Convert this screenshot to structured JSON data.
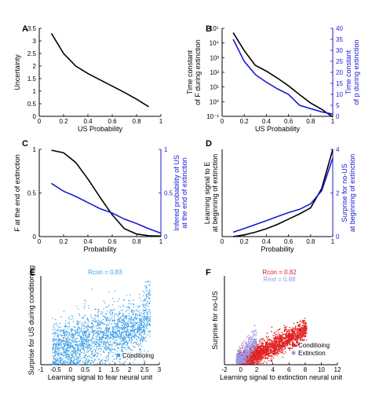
{
  "chart_data": [
    {
      "panel": "A",
      "type": "line",
      "xlabel": "US Probability",
      "ylabel": "Uncertainty",
      "xlim": [
        0,
        1
      ],
      "ylim": [
        0,
        3.5
      ],
      "xticks": [
        "0",
        "0.2",
        "0.4",
        "0.6",
        "0.8",
        "1"
      ],
      "yticks": [
        "0",
        "0.5",
        "1",
        "1.5",
        "2",
        "2.5",
        "3",
        "3.5"
      ],
      "series": [
        {
          "color": "#000000",
          "x": [
            0.1,
            0.2,
            0.3,
            0.4,
            0.5,
            0.6,
            0.7,
            0.8,
            0.9
          ],
          "y": [
            3.3,
            2.5,
            2.0,
            1.7,
            1.45,
            1.2,
            0.95,
            0.68,
            0.38
          ]
        }
      ]
    },
    {
      "panel": "B",
      "type": "line",
      "xlabel": "US Probability",
      "ylabel": "Time constant of F during extinction",
      "ylabel_lines": [
        "Time constant",
        "of F during extinction"
      ],
      "ylabel_right": "Time constant of p during extinction",
      "ylabel_right_lines": [
        "Time constant",
        "of p during extinction"
      ],
      "xlim": [
        0,
        1
      ],
      "ylim_log": [
        -1,
        5
      ],
      "ylim_right": [
        0,
        40
      ],
      "xticks": [
        "0",
        "0.2",
        "0.4",
        "0.6",
        "0.8",
        "1"
      ],
      "yticks": [
        "10⁻¹",
        "10⁰",
        "10¹",
        "10²",
        "10³",
        "10⁴",
        "10⁵"
      ],
      "yticks_right": [
        "0",
        "5",
        "10",
        "15",
        "20",
        "25",
        "30",
        "35",
        "40"
      ],
      "series": [
        {
          "axis": "left-log",
          "color": "#000000",
          "x": [
            0.1,
            0.2,
            0.3,
            0.4,
            0.5,
            0.6,
            0.7,
            0.8,
            0.9,
            1.0
          ],
          "y": [
            50000,
            3000,
            300,
            120,
            40,
            12,
            3,
            0.8,
            0.3,
            0.09
          ]
        },
        {
          "axis": "right",
          "color": "#1a1ad6",
          "x": [
            0.1,
            0.2,
            0.3,
            0.4,
            0.5,
            0.6,
            0.7,
            0.8,
            0.9,
            1.0
          ],
          "y": [
            35,
            25,
            19,
            15.5,
            12.5,
            10,
            5,
            3.5,
            2,
            1
          ]
        }
      ]
    },
    {
      "panel": "C",
      "type": "line",
      "xlabel": "Probability",
      "ylabel_lines": [
        "F at the end of extinction"
      ],
      "ylabel_right_lines": [
        "Infered probability of US",
        "at the end of extinction"
      ],
      "xlim": [
        0,
        1
      ],
      "ylim": [
        0,
        1
      ],
      "ylim_right": [
        0,
        1
      ],
      "xticks": [
        "0",
        "0.2",
        "0.4",
        "0.6",
        "0.8",
        "1"
      ],
      "yticks": [
        "0",
        "0.5",
        "1"
      ],
      "yticks_right": [
        "0",
        "0.5",
        "1"
      ],
      "series": [
        {
          "axis": "left",
          "color": "#000000",
          "x": [
            0.1,
            0.2,
            0.3,
            0.4,
            0.5,
            0.6,
            0.7,
            0.8,
            0.9,
            1.0
          ],
          "y": [
            0.99,
            0.96,
            0.85,
            0.66,
            0.45,
            0.25,
            0.09,
            0.03,
            0.01,
            0.005
          ]
        },
        {
          "axis": "right",
          "color": "#1a1ad6",
          "x": [
            0.1,
            0.2,
            0.3,
            0.4,
            0.5,
            0.6,
            0.7,
            0.8,
            0.9,
            1.0
          ],
          "y": [
            0.61,
            0.52,
            0.46,
            0.39,
            0.32,
            0.27,
            0.2,
            0.15,
            0.09,
            0.04
          ]
        }
      ]
    },
    {
      "panel": "D",
      "type": "line",
      "xlabel": "Probability",
      "ylabel_lines": [
        "Learning signal to E",
        "at beginning of extinction"
      ],
      "ylabel_right_lines": [
        "Surprise for no-US",
        "at beginning of extinction"
      ],
      "xlim": [
        0,
        1
      ],
      "ylim": [
        0,
        1
      ],
      "ylim_right": [
        0,
        4
      ],
      "xticks": [
        "0",
        "0.2",
        "0.4",
        "0.6",
        "0.8",
        "1"
      ],
      "yticks_right": [
        "0",
        "2",
        "4"
      ],
      "series": [
        {
          "axis": "left",
          "color": "#000000",
          "x": [
            0.1,
            0.2,
            0.3,
            0.4,
            0.5,
            0.6,
            0.7,
            0.8,
            0.9,
            1.0
          ],
          "y": [
            0.0,
            0.02,
            0.05,
            0.09,
            0.14,
            0.2,
            0.26,
            0.33,
            0.55,
            1.0
          ]
        },
        {
          "axis": "right",
          "color": "#1a1ad6",
          "x": [
            0.1,
            0.2,
            0.3,
            0.4,
            0.5,
            0.6,
            0.7,
            0.8,
            0.9,
            1.0
          ],
          "y": [
            0.2,
            0.37,
            0.55,
            0.73,
            0.92,
            1.1,
            1.25,
            1.5,
            2.1,
            3.6
          ]
        }
      ]
    },
    {
      "panel": "E",
      "type": "scatter",
      "xlabel": "Learning signal  to fear neural unit",
      "ylabel": "Surprise for US during conditioning",
      "xlim": [
        -1,
        3
      ],
      "ylim": [
        0,
        6
      ],
      "xticks": [
        "-1",
        "-0.5",
        "0",
        "0.5",
        "1",
        "1.5",
        "2",
        "2.5",
        "3"
      ],
      "annotation": "Rcon = 0.83",
      "legend": [
        {
          "label": "Conditioing",
          "color": "#3a9ee8"
        }
      ],
      "point_count": 2200
    },
    {
      "panel": "F",
      "type": "scatter",
      "xlabel": "Learning signal to extinction neural unit",
      "ylabel": "Surprise for no-US",
      "xlim": [
        -2,
        12
      ],
      "ylim": [
        0,
        12
      ],
      "xticks": [
        "-2",
        "0",
        "2",
        "4",
        "6",
        "8",
        "10",
        "12"
      ],
      "annotations": [
        {
          "text": "Rcon = 0.82",
          "color": "#e02020"
        },
        {
          "text": "Rext = 0.88",
          "color": "#9a9ae8"
        }
      ],
      "legend": [
        {
          "label": "Conditioing",
          "color": "#e02020"
        },
        {
          "label": "Extinction",
          "color": "#9a9ae8"
        }
      ],
      "point_count": 2400
    }
  ],
  "panel_letters": [
    "A",
    "B",
    "C",
    "D",
    "E",
    "F"
  ]
}
